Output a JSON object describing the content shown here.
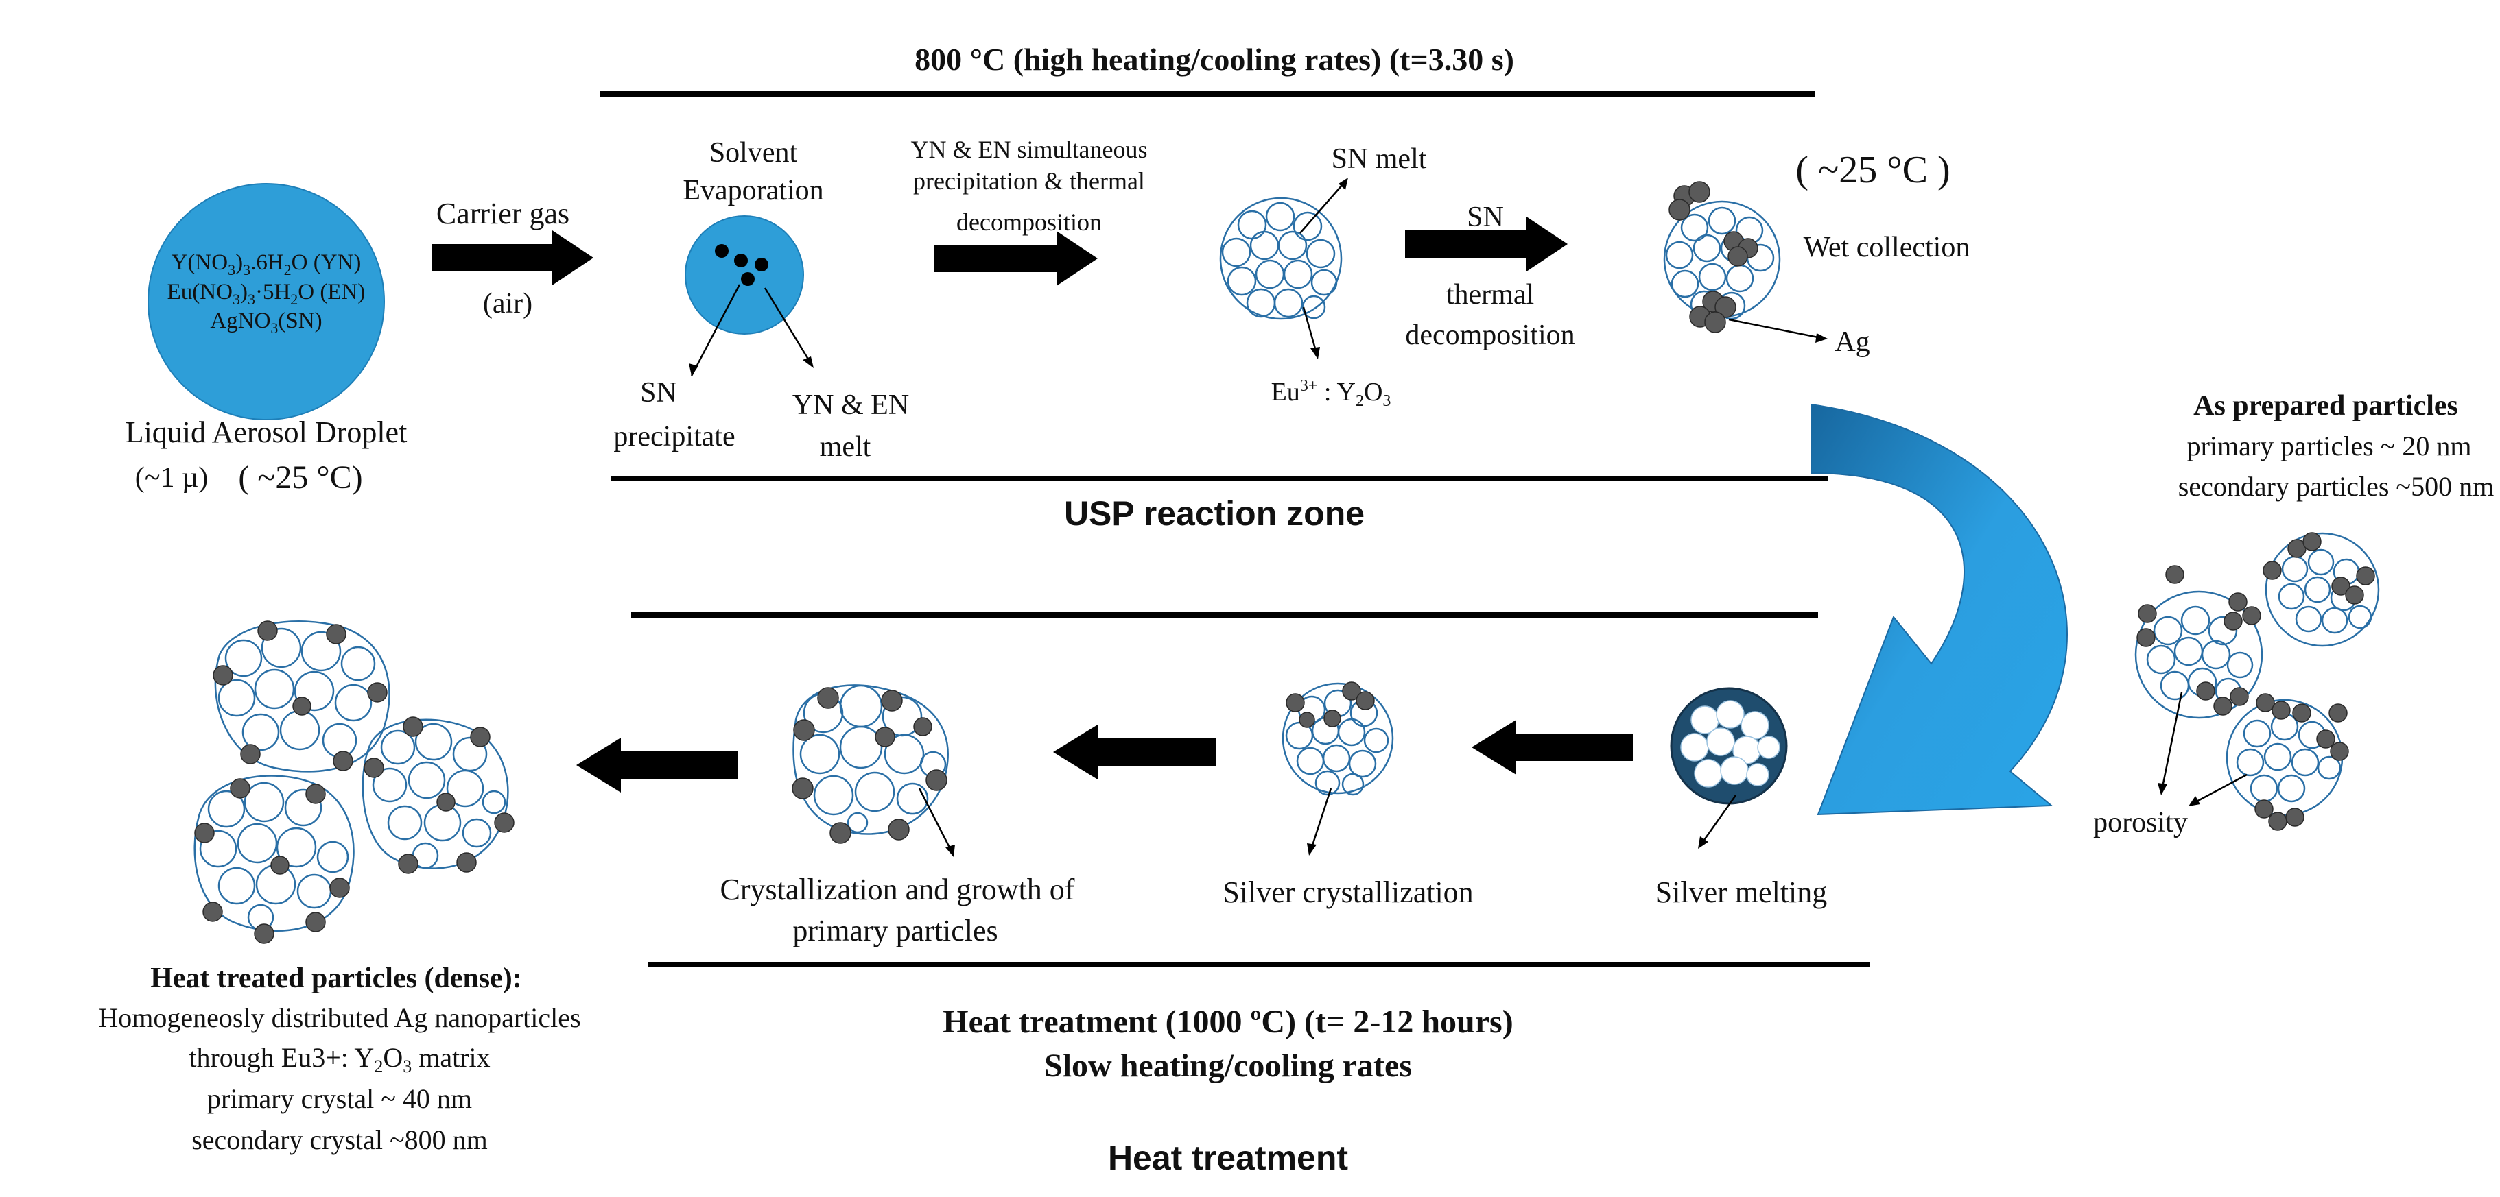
{
  "colors": {
    "droplet_blue": "#2e9ed8",
    "particle_outline": "#2a6fa6",
    "ag_particle": "#5a5a5a",
    "arrow_black": "#000000",
    "curve_arrow_dark": "#1a6fb0",
    "curve_arrow_light": "#2aa4e6",
    "melting_fill": "#1f4d6e"
  },
  "top": {
    "title": "800 °C (high heating/cooling rates) (t=3.30 s)",
    "zone_label": "USP reaction zone",
    "droplet": {
      "line1": "Y(NO",
      "line1_sub1": "3",
      "line1_b": ")",
      "line1_sub2": "3",
      "line1_c": ".6H",
      "line1_sub3": "2",
      "line1_d": "O  (YN)",
      "line2": "Eu(NO",
      "line2_sub1": "3",
      "line2_b": ")",
      "line2_sub2": "3",
      "line2_c": "·5H",
      "line2_sub3": "2",
      "line2_d": "O  (EN)",
      "line3": "AgNO",
      "line3_sub": "3",
      "line3_b": "(SN)"
    },
    "droplet_caption1": "Liquid Aerosol Droplet",
    "droplet_caption2": "(~1 µ)",
    "droplet_caption3": "( ~25 °C)",
    "carrier_gas": "Carrier gas",
    "air": "(air)",
    "solvent_evap1": "Solvent",
    "solvent_evap2": "Evaporation",
    "sn_precipitate1": "SN",
    "sn_precipitate2": "precipitate",
    "yn_en_melt1": "YN & EN",
    "yn_en_melt2": "melt",
    "simul1": "YN & EN simultaneous",
    "simul2": "precipitation  & thermal",
    "simul3": "decomposition",
    "sn_melt": "SN melt",
    "eu_y2o3_a": "Eu",
    "eu_y2o3_sup": "3+",
    "eu_y2o3_b": " : Y",
    "eu_y2o3_sub1": "2",
    "eu_y2o3_c": "O",
    "eu_y2o3_sub2": "3",
    "sn_label": "SN",
    "thermal": "thermal",
    "decomposition": "decomposition",
    "temp_25": "( ~25 °C )",
    "wet_collection": "Wet collection",
    "ag": "Ag"
  },
  "right": {
    "as_prepared": "As prepared  particles",
    "primary": "primary  particles  ~ 20  nm",
    "secondary": "secondary  particles  ~500  nm",
    "porosity": "porosity"
  },
  "bottom": {
    "silver_melting": "Silver melting",
    "silver_crystallization": "Silver crystallization",
    "cryst_growth1": "Crystallization  and  growth  of",
    "cryst_growth2": "primary  particles",
    "heat_title1": "Heat treatment (1000 ºC) (t= 2-12 hours)",
    "heat_title2": "Slow heating/cooling rates",
    "heat_zone": "Heat treatment",
    "final1": "Heat treated particles (dense):",
    "final2": "Homogeneosly distributed Ag nanoparticles",
    "final3a": "through Eu3+: Y",
    "final3_sub1": "2",
    "final3b": "O",
    "final3_sub2": "3",
    "final3c": " matrix",
    "final4": "primary crystal  ~ 40 nm",
    "final5": "secondary  crystal  ~800 nm"
  }
}
